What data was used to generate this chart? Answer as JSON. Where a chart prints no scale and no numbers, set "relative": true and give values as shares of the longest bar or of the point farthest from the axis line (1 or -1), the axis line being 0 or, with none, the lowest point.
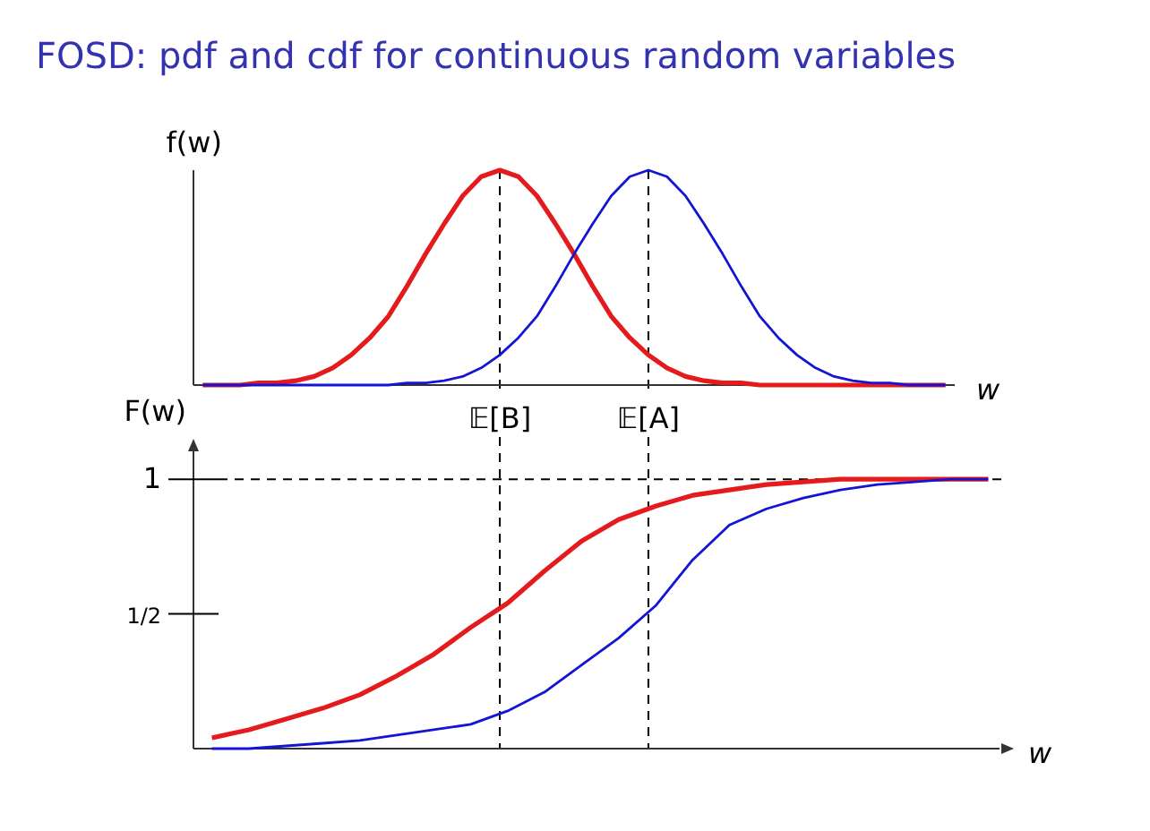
{
  "chart_data": [
    {
      "type": "line",
      "title": "FOSD: pdf and cdf for continuous random variables",
      "relative": true,
      "xlabel": "w",
      "ylabel": "f(w)",
      "tick_labels": "x",
      "categories": [
        null,
        null,
        null,
        null,
        null,
        null,
        null,
        null,
        null,
        null,
        null,
        null,
        null,
        null,
        null,
        null,
        "𝔼[B]",
        null,
        null,
        null,
        null,
        null,
        null,
        null,
        "𝔼[A]",
        null,
        null,
        null,
        null,
        null,
        null,
        null,
        null,
        null,
        null,
        null,
        null,
        null,
        null,
        null,
        null
      ],
      "series": [
        {
          "color": "#e41a1c",
          "values": [
            0,
            0,
            0,
            0.01,
            0.01,
            0.02,
            0.04,
            0.08,
            0.14,
            0.22,
            0.32,
            0.46,
            0.61,
            0.75,
            0.88,
            0.97,
            1,
            0.97,
            0.88,
            0.75,
            0.61,
            0.46,
            0.32,
            0.22,
            0.14,
            0.08,
            0.04,
            0.02,
            0.01,
            0.01,
            0,
            0,
            0,
            0,
            0,
            0,
            0,
            0,
            0,
            0,
            0
          ]
        },
        {
          "color": "#1414d4",
          "values": [
            0,
            0,
            0,
            0,
            0,
            0,
            0,
            0,
            0,
            0,
            0,
            0.01,
            0.01,
            0.02,
            0.04,
            0.08,
            0.14,
            0.22,
            0.32,
            0.46,
            0.61,
            0.75,
            0.88,
            0.97,
            1,
            0.97,
            0.88,
            0.75,
            0.61,
            0.46,
            0.32,
            0.22,
            0.14,
            0.08,
            0.04,
            0.02,
            0.01,
            0.01,
            0,
            0,
            0
          ]
        }
      ],
      "ref_lines": [
        {
          "axis": "x",
          "value": "𝔼[B]",
          "line_style": "dashed",
          "color": "#000000"
        },
        {
          "axis": "x",
          "value": "𝔼[A]",
          "line_style": "dashed",
          "color": "#000000"
        }
      ]
    },
    {
      "type": "line",
      "xlabel": "w",
      "ylabel": "F(w)",
      "tick_labels": "y",
      "ylim": [
        0,
        1.15
      ],
      "yticks": [
        {
          "value": 0.5,
          "label": "1/2"
        },
        1
      ],
      "categories": [
        null,
        null,
        null,
        null,
        null,
        null,
        null,
        null,
        null,
        null,
        null,
        null,
        null,
        null,
        null,
        null,
        null,
        null,
        null,
        null,
        null,
        null
      ],
      "series": [
        {
          "color": "#e41a1c",
          "values": [
            0.04,
            0.07,
            0.11,
            0.15,
            0.2,
            0.27,
            0.35,
            0.45,
            0.54,
            0.66,
            0.77,
            0.85,
            0.9,
            0.94,
            0.96,
            0.98,
            0.99,
            1,
            1,
            1,
            1,
            1
          ]
        },
        {
          "color": "#1414d4",
          "values": [
            0,
            0,
            0.01,
            0.02,
            0.03,
            0.05,
            0.07,
            0.09,
            0.14,
            0.21,
            0.31,
            0.41,
            0.53,
            0.7,
            0.83,
            0.89,
            0.93,
            0.96,
            0.98,
            0.99,
            1,
            1
          ]
        }
      ],
      "ref_lines": [
        {
          "axis": "y",
          "value": 1,
          "line_style": "dashed",
          "color": "#000000"
        }
      ]
    }
  ]
}
